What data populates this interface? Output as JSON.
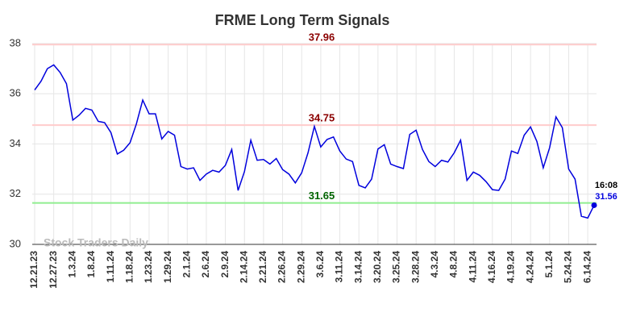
{
  "chart_data": {
    "type": "line",
    "title": "FRME Long Term Signals",
    "watermark": "Stock Traders Daily",
    "categories": [
      "12.21.23",
      null,
      null,
      "12.27.23",
      null,
      null,
      "1.3.24",
      null,
      null,
      "1.8.24",
      null,
      null,
      "1.11.24",
      null,
      null,
      "1.18.24",
      null,
      null,
      "1.23.24",
      null,
      null,
      "1.29.24",
      null,
      null,
      "2.1.24",
      null,
      null,
      "2.6.24",
      null,
      null,
      "2.9.24",
      null,
      null,
      "2.14.24",
      null,
      null,
      "2.21.24",
      null,
      null,
      "2.26.24",
      null,
      null,
      "2.29.24",
      null,
      null,
      "3.6.24",
      null,
      null,
      "3.11.24",
      null,
      null,
      "3.14.24",
      null,
      null,
      "3.20.24",
      null,
      null,
      "3.25.24",
      null,
      null,
      "3.28.24",
      null,
      null,
      "4.3.24",
      null,
      null,
      "4.8.24",
      null,
      null,
      "4.11.24",
      null,
      null,
      "4.16.24",
      null,
      null,
      "4.19.24",
      null,
      null,
      "4.24.24",
      null,
      null,
      "5.1.24",
      null,
      null,
      "5.24.24",
      null,
      null,
      "6.14.24",
      null
    ],
    "values": [
      36.15,
      36.5,
      37.0,
      37.15,
      36.85,
      36.4,
      34.95,
      35.15,
      35.42,
      35.35,
      34.9,
      34.85,
      34.45,
      33.6,
      33.75,
      34.05,
      34.8,
      35.75,
      35.2,
      35.2,
      34.2,
      34.5,
      34.35,
      33.1,
      33.0,
      33.05,
      32.55,
      32.8,
      32.95,
      32.88,
      33.15,
      33.78,
      32.15,
      32.9,
      34.15,
      33.35,
      33.38,
      33.2,
      33.42,
      32.98,
      32.8,
      32.45,
      32.85,
      33.65,
      34.7,
      33.88,
      34.18,
      34.28,
      33.72,
      33.4,
      33.3,
      32.35,
      32.25,
      32.6,
      33.8,
      33.97,
      33.2,
      33.1,
      33.02,
      34.38,
      34.55,
      33.78,
      33.3,
      33.1,
      33.35,
      33.28,
      33.65,
      34.15,
      32.55,
      32.88,
      32.75,
      32.5,
      32.18,
      32.15,
      32.6,
      33.72,
      33.62,
      34.35,
      34.68,
      34.1,
      33.05,
      33.85,
      35.08,
      34.65,
      33.0,
      32.6,
      31.12,
      31.05,
      31.56
    ],
    "color": "#0000dd",
    "last_time": "16:08",
    "ylim": [
      30,
      38
    ],
    "yticks": [
      30,
      32,
      34,
      36,
      38
    ],
    "grid": true,
    "hlines": [
      {
        "value": 37.96,
        "color": "#ffcccc",
        "label_color": "#8b0000"
      },
      {
        "value": 34.75,
        "color": "#ffcccc",
        "label_color": "#8b0000"
      },
      {
        "value": 31.65,
        "color": "#90ee90",
        "label_color": "#006400"
      }
    ]
  }
}
